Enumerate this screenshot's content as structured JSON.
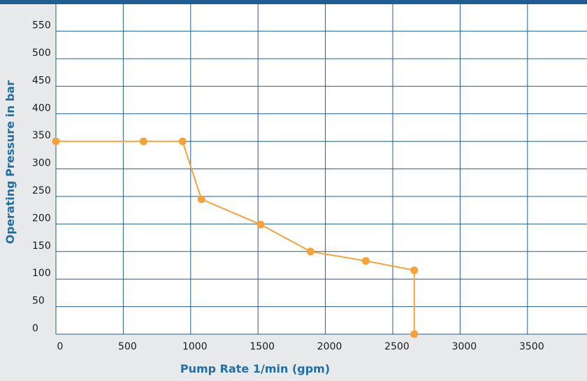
{
  "chart_data": {
    "type": "line",
    "xlabel": "Pump Rate 1/min (gpm)",
    "ylabel": "Operating Pressure in bar",
    "xlim": [
      0,
      3900
    ],
    "ylim": [
      0,
      600
    ],
    "x_ticks": [
      0,
      500,
      1000,
      1500,
      2000,
      2500,
      3000,
      3500
    ],
    "y_ticks": [
      0,
      50,
      100,
      150,
      200,
      250,
      300,
      350,
      400,
      450,
      500,
      550
    ],
    "grid": true,
    "colors": {
      "series": "#f7a238",
      "grid": "#1f5e93",
      "plot_background": "#ffffff",
      "page_background": "#e8e9ea",
      "axis_title": "#1f6fa6"
    },
    "series": [
      {
        "x": [
          0,
          650,
          940,
          1080,
          1520,
          1890,
          2300,
          2660,
          2660
        ],
        "y": [
          350,
          350,
          350,
          245,
          199,
          150,
          133,
          116,
          0
        ]
      }
    ]
  }
}
